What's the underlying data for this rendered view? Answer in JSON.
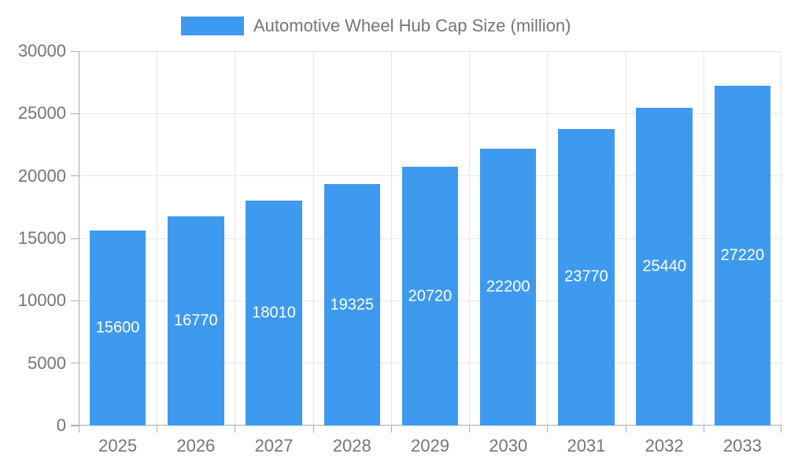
{
  "chart_data": {
    "type": "bar",
    "title": "",
    "legend": {
      "label": "Automotive Wheel Hub Cap Size (million)",
      "position": "top"
    },
    "categories": [
      "2025",
      "2026",
      "2027",
      "2028",
      "2029",
      "2030",
      "2031",
      "2032",
      "2033"
    ],
    "series": [
      {
        "name": "Automotive Wheel Hub Cap Size (million)",
        "values": [
          15600,
          16770,
          18010,
          19325,
          20720,
          22200,
          23770,
          25440,
          27220
        ]
      }
    ],
    "xlabel": "",
    "ylabel": "",
    "ylim": [
      0,
      30000
    ],
    "yticks": [
      0,
      5000,
      10000,
      15000,
      20000,
      25000,
      30000
    ],
    "grid": true,
    "bar_labels_inside": true,
    "colors": {
      "bar": "#3E9AEE",
      "grid": "#E6E6E6",
      "axis": "#ABABAB",
      "axis_text": "#757575",
      "bar_label_text": "#FFFFFF",
      "background": "#FFFFFF"
    }
  }
}
